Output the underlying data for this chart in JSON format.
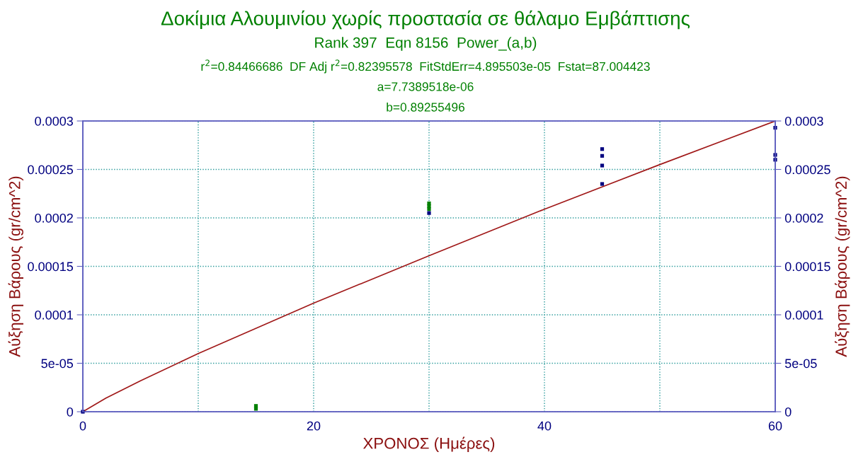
{
  "chart_data": {
    "type": "scatter",
    "title": "Δοκίμια Αλουμινίου χωρίς προστασία σε θάλαμο Εμβάπτισης",
    "subtitle": "Rank 397  Eqn 8156  Power_(a,b)",
    "annotations": [
      "r$^{2}$=0.84466686  DF Adj r$^{2}$=0.82395578  FitStdErr=4.895503e-05  Fstat=87.004423",
      "a=7.7389518e-06",
      "b=0.89255496"
    ],
    "xlabel": "ΧΡΟΝΟΣ (Ημέρες)",
    "ylabel": "Αύξηση Βάρους (gr/cm^2)",
    "y2label": "Αύξηση Βάρους (gr/cm^2)",
    "xlim": [
      0,
      60
    ],
    "xticks": [
      0,
      {
        "value": 10,
        "label": null
      },
      20,
      {
        "value": 30,
        "label": null
      },
      40,
      {
        "value": 50,
        "label": null
      },
      60
    ],
    "ylim": [
      0,
      0.0003
    ],
    "yticks": [
      {
        "value": 0,
        "label": "0"
      },
      {
        "value": 5e-05,
        "label": "5e-05"
      },
      {
        "value": 0.0001,
        "label": "0.0001"
      },
      {
        "value": 0.00015,
        "label": "0.00015"
      },
      {
        "value": 0.0002,
        "label": "0.0002"
      },
      {
        "value": 0.00025,
        "label": "0.00025"
      },
      {
        "value": 0.0003,
        "label": "0.0003"
      }
    ],
    "y2lim": [
      0,
      0.0003
    ],
    "y2ticks": [
      {
        "value": 0,
        "label": "0"
      },
      {
        "value": 5e-05,
        "label": "5e-05"
      },
      {
        "value": 0.0001,
        "label": "0.0001"
      },
      {
        "value": 0.00015,
        "label": "0.00015"
      },
      {
        "value": 0.0002,
        "label": "0.0002"
      },
      {
        "value": 0.00025,
        "label": "0.00025"
      },
      {
        "value": 0.0003,
        "label": "0.0003"
      }
    ],
    "grid": true,
    "marker": "square",
    "legend": false,
    "series": [
      {
        "type": "line",
        "marker": "none",
        "color": "#a01818",
        "x": [
          0,
          2,
          5,
          10,
          20,
          30,
          40,
          50,
          60
        ],
        "values": [
          0,
          1.4e-05,
          3.2e-05,
          6e-05,
          0.000112,
          0.000161,
          0.000209,
          0.000255,
          0.0003
        ]
      },
      {
        "color": "#008000",
        "x": [
          15,
          15,
          30,
          30,
          30
        ],
        "values": [
          6e-06,
          3e-06,
          0.000215,
          0.000212,
          0.000209
        ]
      },
      {
        "color": "#000080",
        "x": [
          0,
          30,
          45,
          45,
          45,
          45,
          60,
          60,
          60
        ],
        "values": [
          0,
          0.000205,
          0.000271,
          0.000264,
          0.000254,
          0.000235,
          0.000293,
          0.000265,
          0.00026
        ]
      }
    ]
  }
}
